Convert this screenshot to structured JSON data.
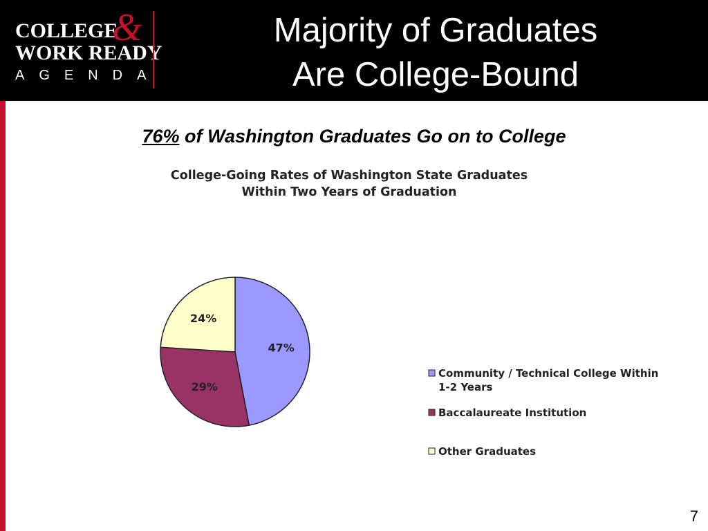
{
  "header": {
    "logo": {
      "line1": "COLLEGE",
      "ampersand": "&",
      "line2": "WORK READY",
      "line3": "AGENDA"
    },
    "title_line1": "Majority of Graduates",
    "title_line2": "Are College-Bound"
  },
  "subtitle": {
    "emphasis": "76%",
    "rest": " of Washington Graduates Go on to College"
  },
  "page_number": "7",
  "colors": {
    "accent_red": "#c8102e",
    "header_bg": "#000000"
  },
  "chart_data": {
    "type": "pie",
    "title": "College-Going Rates of Washington State Graduates\nWithin Two Years of Graduation",
    "slices": [
      {
        "label": "Community / Technical College Within 1-2 Years",
        "value": 47,
        "data_label": "47%",
        "color": "#9999ff"
      },
      {
        "label": "Baccalaureate Institution",
        "value": 29,
        "data_label": "29%",
        "color": "#993366"
      },
      {
        "label": "Other Graduates",
        "value": 24,
        "data_label": "24%",
        "color": "#ffffcc"
      }
    ],
    "legend_position": "right"
  }
}
